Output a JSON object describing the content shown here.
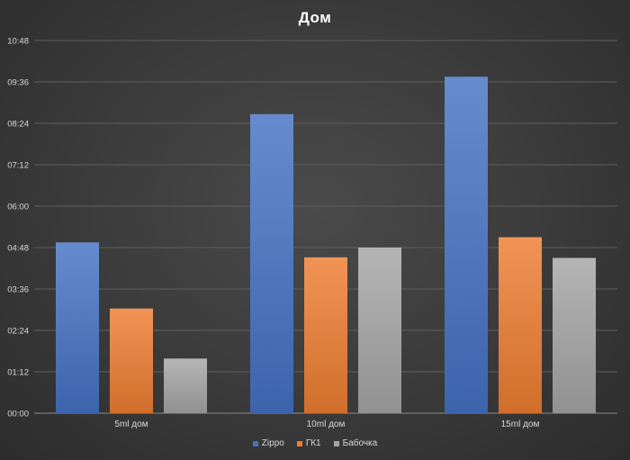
{
  "chart_data": {
    "type": "bar",
    "title": "Дом",
    "xlabel": "",
    "ylabel": "",
    "categories": [
      "5ml дом",
      "10ml дом",
      "15ml дом"
    ],
    "series": [
      {
        "name": "Zippo",
        "color": "#4472C4",
        "values": [
          297,
          520,
          585
        ]
      },
      {
        "name": "ГК1",
        "color": "#ED7D31",
        "values": [
          182,
          271,
          306
        ]
      },
      {
        "name": "Бабочка",
        "color": "#A5A5A5",
        "values": [
          95,
          288,
          270
        ]
      }
    ],
    "y_unit": "seconds (axis shown as mm:ss)",
    "ylim": [
      0,
      648
    ],
    "y_ticks": [
      "00:00",
      "01:12",
      "02:24",
      "03:36",
      "04:48",
      "06:00",
      "07:12",
      "08:24",
      "09:36",
      "10:48"
    ],
    "grid": true,
    "legend_position": "bottom"
  }
}
